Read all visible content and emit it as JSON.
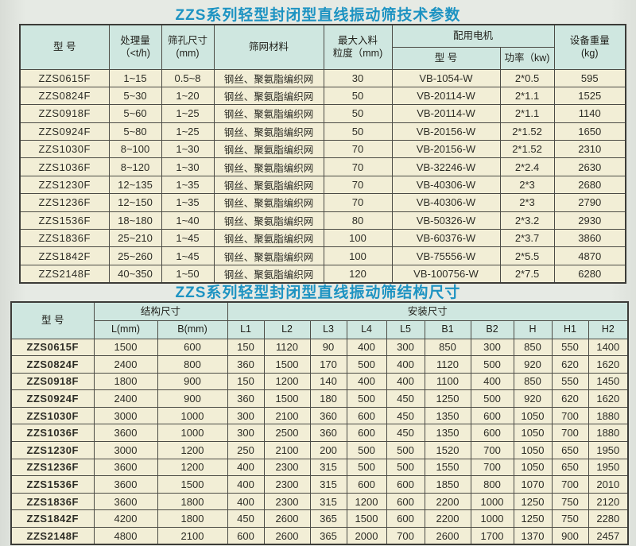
{
  "colors": {
    "page_bg": "#e3e7e1",
    "header_cell_bg": "#cfe7e0",
    "body_cell_bg": "#f2eed6",
    "border": "#4c4c46",
    "title_text": "#1d93c2",
    "body_text": "#2d2d26"
  },
  "table1": {
    "title": "ZZS系列轻型封闭型直线振动筛技术参数",
    "headers": {
      "model": "型  号",
      "capacity": "处理量\n（<t/h)",
      "aperture": "筛孔尺寸\n(mm)",
      "mesh": "筛网材料",
      "max_feed": "最大入料\n粒度（mm)",
      "motor_group": "配用电机",
      "motor_model": "型  号",
      "motor_power": "功率（kw)",
      "weight": "设备重量\n(kg)"
    },
    "rows": [
      [
        "ZZS0615F",
        "1~15",
        "0.5~8",
        "钢丝、聚氨脂编织网",
        "30",
        "VB-1054-W",
        "2*0.5",
        "595"
      ],
      [
        "ZZS0824F",
        "5~30",
        "1~20",
        "钢丝、聚氨脂编织网",
        "50",
        "VB-20114-W",
        "2*1.1",
        "1525"
      ],
      [
        "ZZS0918F",
        "5~60",
        "1~25",
        "钢丝、聚氨脂编织网",
        "50",
        "VB-20114-W",
        "2*1.1",
        "1140"
      ],
      [
        "ZZS0924F",
        "5~80",
        "1~25",
        "钢丝、聚氨脂编织网",
        "50",
        "VB-20156-W",
        "2*1.52",
        "1650"
      ],
      [
        "ZZS1030F",
        "8~100",
        "1~30",
        "钢丝、聚氨脂编织网",
        "70",
        "VB-20156-W",
        "2*1.52",
        "2310"
      ],
      [
        "ZZS1036F",
        "8~120",
        "1~30",
        "钢丝、聚氨脂编织网",
        "70",
        "VB-32246-W",
        "2*2.4",
        "2630"
      ],
      [
        "ZZS1230F",
        "12~135",
        "1~35",
        "钢丝、聚氨脂编织网",
        "70",
        "VB-40306-W",
        "2*3",
        "2680"
      ],
      [
        "ZZS1236F",
        "12~150",
        "1~35",
        "钢丝、聚氨脂编织网",
        "70",
        "VB-40306-W",
        "2*3",
        "2790"
      ],
      [
        "ZZS1536F",
        "18~180",
        "1~40",
        "钢丝、聚氨脂编织网",
        "80",
        "VB-50326-W",
        "2*3.2",
        "2930"
      ],
      [
        "ZZS1836F",
        "25~210",
        "1~45",
        "钢丝、聚氨脂编织网",
        "100",
        "VB-60376-W",
        "2*3.7",
        "3860"
      ],
      [
        "ZZS1842F",
        "25~260",
        "1~45",
        "钢丝、聚氨脂编织网",
        "100",
        "VB-75556-W",
        "2*5.5",
        "4870"
      ],
      [
        "ZZS2148F",
        "40~350",
        "1~50",
        "钢丝、聚氨脂编织网",
        "120",
        "VB-100756-W",
        "2*7.5",
        "6280"
      ]
    ]
  },
  "table2": {
    "title": "ZZS系列轻型封闭型直线振动筛结构尺寸",
    "headers": {
      "model": "型  号",
      "structure_group": "结构尺寸",
      "install_group": "安装尺寸",
      "sub": [
        "L(mm)",
        "B(mm)",
        "L1",
        "L2",
        "L3",
        "L4",
        "L5",
        "B1",
        "B2",
        "H",
        "H1",
        "H2"
      ]
    },
    "rows": [
      [
        "ZZS0615F",
        "1500",
        "600",
        "150",
        "1120",
        "90",
        "400",
        "300",
        "850",
        "300",
        "850",
        "550",
        "1400"
      ],
      [
        "ZZS0824F",
        "2400",
        "800",
        "360",
        "1500",
        "170",
        "500",
        "400",
        "1120",
        "500",
        "920",
        "620",
        "1620"
      ],
      [
        "ZZS0918F",
        "1800",
        "900",
        "150",
        "1200",
        "140",
        "400",
        "400",
        "1100",
        "400",
        "850",
        "550",
        "1450"
      ],
      [
        "ZZS0924F",
        "2400",
        "900",
        "360",
        "1500",
        "180",
        "500",
        "450",
        "1250",
        "500",
        "920",
        "620",
        "1620"
      ],
      [
        "ZZS1030F",
        "3000",
        "1000",
        "300",
        "2100",
        "360",
        "600",
        "450",
        "1350",
        "600",
        "1050",
        "700",
        "1880"
      ],
      [
        "ZZS1036F",
        "3600",
        "1000",
        "300",
        "2500",
        "360",
        "600",
        "450",
        "1350",
        "600",
        "1050",
        "700",
        "1880"
      ],
      [
        "ZZS1230F",
        "3000",
        "1200",
        "250",
        "2100",
        "200",
        "500",
        "500",
        "1520",
        "700",
        "1050",
        "650",
        "1950"
      ],
      [
        "ZZS1236F",
        "3600",
        "1200",
        "400",
        "2300",
        "315",
        "500",
        "500",
        "1550",
        "700",
        "1050",
        "650",
        "1950"
      ],
      [
        "ZZS1536F",
        "3600",
        "1500",
        "400",
        "2300",
        "315",
        "600",
        "600",
        "1850",
        "800",
        "1070",
        "700",
        "2010"
      ],
      [
        "ZZS1836F",
        "3600",
        "1800",
        "400",
        "2300",
        "315",
        "1200",
        "600",
        "2200",
        "1000",
        "1250",
        "750",
        "2120"
      ],
      [
        "ZZS1842F",
        "4200",
        "1800",
        "450",
        "2600",
        "365",
        "1500",
        "600",
        "2200",
        "1000",
        "1250",
        "750",
        "2280"
      ],
      [
        "ZZS2148F",
        "4800",
        "2100",
        "600",
        "2600",
        "365",
        "2000",
        "700",
        "2600",
        "1700",
        "1370",
        "900",
        "2457"
      ]
    ]
  }
}
